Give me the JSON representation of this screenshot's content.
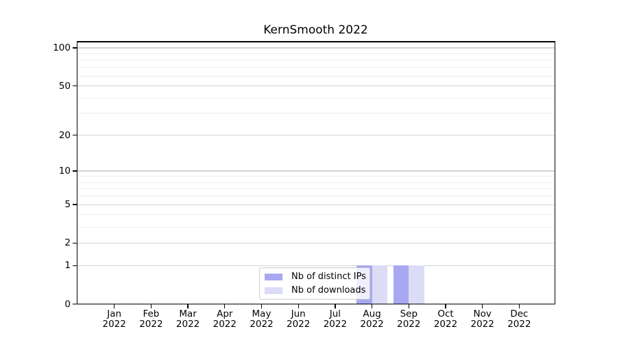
{
  "figure": {
    "title": "KernSmooth 2022",
    "background": "#ffffff"
  },
  "legend": {
    "items": [
      {
        "label": "Nb of distinct IPs",
        "color": "#a8a8f0"
      },
      {
        "label": "Nb of downloads",
        "color": "#dcdcf7"
      }
    ]
  },
  "chart_data": {
    "type": "bar",
    "title": "KernSmooth 2022",
    "categories": [
      "Jan 2022",
      "Feb 2022",
      "Mar 2022",
      "Apr 2022",
      "May 2022",
      "Jun 2022",
      "Jul 2022",
      "Aug 2022",
      "Sep 2022",
      "Oct 2022",
      "Nov 2022",
      "Dec 2022"
    ],
    "series": [
      {
        "name": "Nb of distinct IPs",
        "color": "#a8a8f0",
        "values": [
          0,
          0,
          0,
          0,
          0,
          0,
          0,
          1,
          1,
          0,
          0,
          0
        ]
      },
      {
        "name": "Nb of downloads",
        "color": "#dcdcf7",
        "values": [
          0,
          0,
          0,
          0,
          0,
          0,
          0,
          1,
          1,
          0,
          0,
          0
        ]
      }
    ],
    "xlabel": "",
    "ylabel": "",
    "yscale": "log1p",
    "ylim": [
      0,
      112
    ],
    "ytick_values": [
      0,
      1,
      2,
      5,
      10,
      20,
      50,
      100
    ],
    "ytick_labels": [
      "0",
      "1",
      "2",
      "5",
      "10",
      "20",
      "50",
      "100"
    ],
    "yminor_values": [
      3,
      4,
      6,
      7,
      8,
      9,
      30,
      40,
      60,
      70,
      80,
      90
    ],
    "grid": "horizontal major+minor",
    "legend_position": "lower center",
    "colors": {
      "major_grid": "#d2d2d2",
      "minor_grid": "#ededed",
      "spine": "#000000",
      "text": "#000000"
    }
  }
}
